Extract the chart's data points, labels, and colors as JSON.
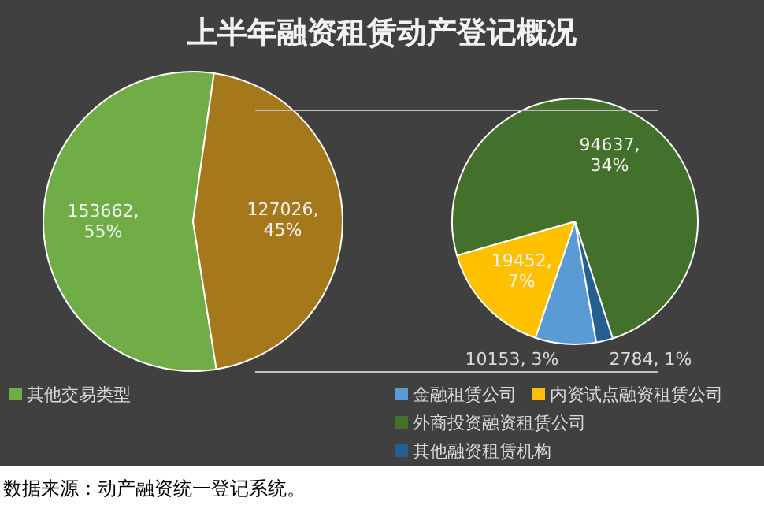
{
  "chart_data": [
    {
      "type": "pie",
      "title": "上半年融资租赁动产登记概况",
      "categories": [
        "其他交易类型",
        null
      ],
      "values": [
        153662,
        127026
      ],
      "colors": [
        "#70ad47",
        "#a5781c"
      ],
      "value_labels": [
        "153662, 55%",
        "127026, 45%"
      ],
      "legend": "bottom",
      "annotations": [
        "数据来源：动产融资统一登记系统。"
      ]
    },
    {
      "type": "pie",
      "categories": [
        "金融租赁公司",
        "内资试点融资租赁公司",
        "外商投资融资租赁公司",
        "其他融资租赁机构"
      ],
      "values": [
        10153,
        19452,
        94637,
        2784
      ],
      "colors": [
        "#5b9bd5",
        "#ffc000",
        "#43702b",
        "#255e91"
      ],
      "value_labels": [
        "10153, 3%",
        "19452, 7%",
        "94637, 34%",
        "2784, 1%"
      ],
      "legend": "bottom"
    }
  ]
}
